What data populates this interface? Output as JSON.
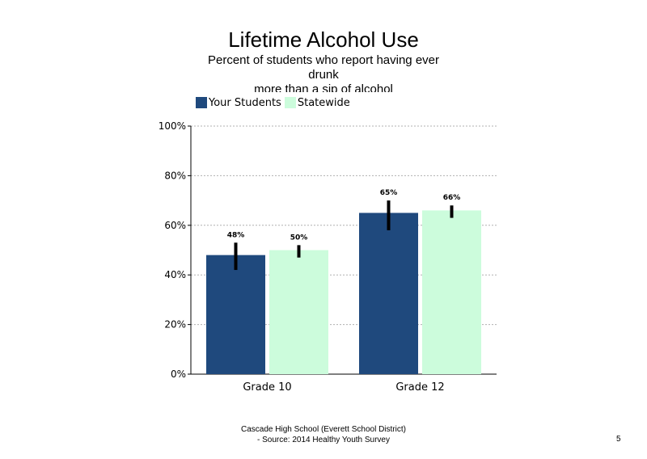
{
  "title": "Lifetime Alcohol Use",
  "subtitle_line1": "Percent of students who report having ever",
  "subtitle_line2": "drunk",
  "subtitle_line3": "more than a sip of alcohol",
  "footer_line1": "Cascade High School (Everett School District)",
  "footer_line2": "- Source: 2014 Healthy  Youth Survey",
  "page_number": "5",
  "chart_data": {
    "type": "bar",
    "title": "Lifetime Alcohol Use",
    "subtitle": "Percent of students who report having ever drunk more than a sip of alcohol",
    "categories": [
      "Grade 10",
      "Grade 12"
    ],
    "series": [
      {
        "name": "Your Students",
        "color": "#1f497d",
        "values": [
          48,
          65
        ],
        "labels": [
          "48%",
          "65%"
        ],
        "error_low": [
          42,
          58
        ],
        "error_high": [
          53,
          70
        ]
      },
      {
        "name": "Statewide",
        "color": "#ccfcdc",
        "values": [
          50,
          66
        ],
        "labels": [
          "50%",
          "66%"
        ],
        "error_low": [
          47,
          63
        ],
        "error_high": [
          52,
          68
        ]
      }
    ],
    "yticks": [
      "0%",
      "20%",
      "40%",
      "60%",
      "80%",
      "100%"
    ],
    "ylim": [
      0,
      100
    ],
    "grid": true,
    "legend": "top-left",
    "xlabel": "",
    "ylabel": ""
  }
}
